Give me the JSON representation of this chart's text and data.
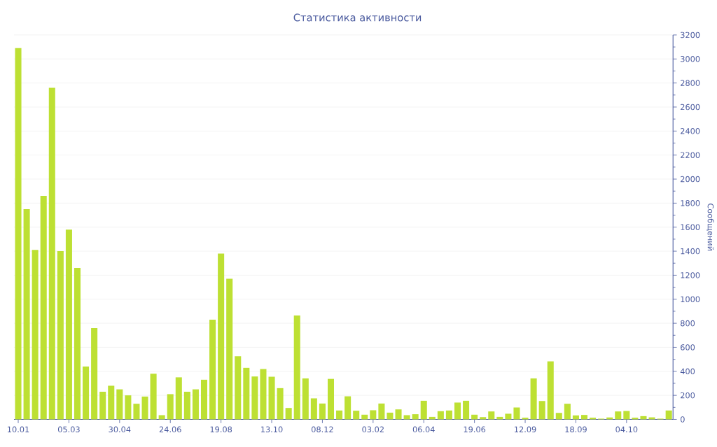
{
  "chart_data": {
    "type": "bar",
    "title": "Статистика активности",
    "ylabel": "Сообщений",
    "categories": [
      "10.01",
      null,
      null,
      null,
      null,
      null,
      "05.03",
      null,
      null,
      null,
      null,
      null,
      "30.04",
      null,
      null,
      null,
      null,
      null,
      "24.06",
      null,
      null,
      null,
      null,
      null,
      "19.08",
      null,
      null,
      null,
      null,
      null,
      "13.10",
      null,
      null,
      null,
      null,
      null,
      "08.12",
      null,
      null,
      null,
      null,
      null,
      "03.02",
      null,
      null,
      null,
      null,
      null,
      "06.04",
      null,
      null,
      null,
      null,
      null,
      "19.06",
      null,
      null,
      null,
      null,
      null,
      "12.09",
      null,
      null,
      null,
      null,
      null,
      "18.09",
      null,
      null,
      null,
      null,
      null,
      "04.10",
      null,
      null,
      null,
      null,
      null
    ],
    "values": [
      3090,
      1750,
      1410,
      1860,
      2760,
      1400,
      1580,
      1260,
      440,
      760,
      230,
      280,
      250,
      200,
      130,
      190,
      380,
      35,
      210,
      350,
      230,
      250,
      330,
      830,
      1380,
      1170,
      525,
      429,
      357,
      419,
      355,
      260,
      95,
      865,
      341,
      175,
      132,
      337,
      74,
      192,
      72,
      39,
      76,
      132,
      56,
      83,
      35,
      43,
      155,
      21,
      68,
      74,
      140,
      155,
      39,
      19,
      66,
      21,
      47,
      99,
      14,
      341,
      153,
      483,
      54,
      130,
      33,
      37,
      14,
      6,
      16,
      66,
      70,
      14,
      27,
      17,
      6,
      74
    ],
    "color": "#bde033",
    "ylim": [
      0,
      3200
    ],
    "yticks": [
      0,
      200,
      400,
      600,
      800,
      1000,
      1200,
      1400,
      1600,
      1800,
      2000,
      2200,
      2400,
      2600,
      2800,
      3000,
      3200
    ],
    "grid": "y"
  }
}
